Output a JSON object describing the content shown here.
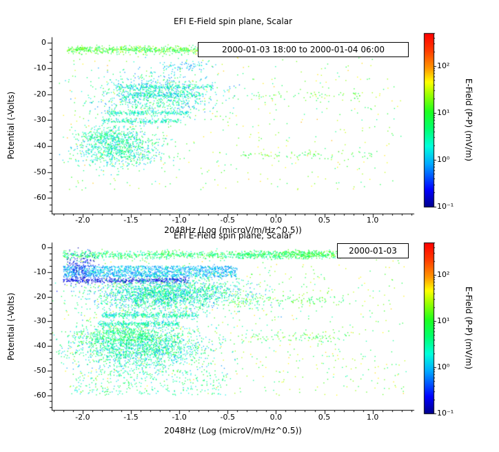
{
  "page": {
    "background": "#ffffff"
  },
  "chart_data": [
    {
      "type": "scatter",
      "title": "EFI  E-Field spin plane, Scalar",
      "xlabel": "2048Hz (Log (microV/m/Hz^0.5))",
      "ylabel": "Potential (-Volts)",
      "legend": "2000-01-03 18:00 to 2000-01-04 06:00",
      "xlim": [
        -2.32,
        1.43
      ],
      "ylim": [
        -66,
        2
      ],
      "xticks": [
        -2.0,
        -1.5,
        -1.0,
        -0.5,
        0.0,
        0.5,
        1.0
      ],
      "xtick_labels": [
        "-2.0",
        "-1.5",
        "-1.0",
        "-0.5",
        "0.0",
        "0.5",
        "1.0"
      ],
      "yticks": [
        0,
        -10,
        -20,
        -30,
        -40,
        -50,
        -60
      ],
      "ytick_labels": [
        "0",
        "-10",
        "-20",
        "-30",
        "-40",
        "-50",
        "-60"
      ],
      "grid": false,
      "legend_position": "top-right-inside",
      "colorbar": {
        "label": "E-Field (P-P) (mV/m)",
        "scale": "log",
        "range_log10": [
          -1,
          2.7
        ],
        "tick_values_log10": [
          2,
          1,
          0,
          -1
        ],
        "tick_labels": [
          "10²",
          "10¹",
          "10⁰",
          "10⁻¹"
        ],
        "colormap": "rainbow-blue-to-red"
      },
      "clusters": [
        {
          "shape": "hline",
          "x": [
            -2.18,
            -0.35
          ],
          "cy": -2.8,
          "sy": 0.6,
          "n": 550,
          "v": [
            0.5,
            1.5
          ]
        },
        {
          "shape": "band",
          "x": [
            -2.18,
            -0.3
          ],
          "y": [
            -1.2,
            -5.0
          ],
          "n": 200,
          "v": [
            0.5,
            1.6
          ]
        },
        {
          "shape": "hline",
          "x": [
            -0.6,
            0.35
          ],
          "cy": -2.8,
          "sy": 0.5,
          "n": 180,
          "v": [
            -0.2,
            0.6
          ]
        },
        {
          "shape": "gauss",
          "cx": -0.95,
          "cy": -9.0,
          "sx": 0.12,
          "sy": 1.0,
          "n": 70,
          "v": [
            -0.3,
            0.4
          ]
        },
        {
          "shape": "gauss",
          "cx": -1.25,
          "cy": -20.5,
          "sx": 0.33,
          "sy": 4.5,
          "n": 850,
          "v": [
            -0.3,
            1.0
          ]
        },
        {
          "shape": "hline",
          "x": [
            -1.65,
            -0.65
          ],
          "cy": -17.2,
          "sy": 0.5,
          "n": 200,
          "v": [
            -0.2,
            0.8
          ]
        },
        {
          "shape": "hline",
          "x": [
            -1.6,
            -0.75
          ],
          "cy": -20.3,
          "sy": 0.5,
          "n": 180,
          "v": [
            -0.2,
            0.8
          ]
        },
        {
          "shape": "hline",
          "x": [
            -1.75,
            -0.9
          ],
          "cy": -27.2,
          "sy": 0.5,
          "n": 190,
          "v": [
            -0.1,
            0.9
          ]
        },
        {
          "shape": "hline",
          "x": [
            -1.8,
            -1.0
          ],
          "cy": -30.3,
          "sy": 0.5,
          "n": 170,
          "v": [
            -0.1,
            0.9
          ]
        },
        {
          "shape": "gauss",
          "cx": -1.63,
          "cy": -41.0,
          "sx": 0.22,
          "sy": 3.8,
          "n": 850,
          "v": [
            -0.2,
            1.0
          ]
        },
        {
          "shape": "gauss",
          "cx": -1.75,
          "cy": -36.0,
          "sx": 0.15,
          "sy": 1.5,
          "n": 200,
          "v": [
            0.0,
            1.0
          ]
        },
        {
          "shape": "band",
          "x": [
            -2.2,
            1.35
          ],
          "y": [
            -5,
            -57
          ],
          "n": 420,
          "v": [
            0.5,
            1.9
          ]
        },
        {
          "shape": "hline",
          "x": [
            -0.4,
            1.0
          ],
          "cy": -43.5,
          "sy": 0.8,
          "n": 80,
          "v": [
            0.6,
            1.5
          ]
        },
        {
          "shape": "hline",
          "x": [
            -0.3,
            0.9
          ],
          "cy": -20.5,
          "sy": 0.8,
          "n": 60,
          "v": [
            0.6,
            1.5
          ]
        }
      ]
    },
    {
      "type": "scatter",
      "title": "EFI  E-Field spin plane, Scalar",
      "xlabel": "2048Hz (Log (microV/m/Hz^0.5))",
      "ylabel": "Potential (-Volts)",
      "legend": "2000-01-03",
      "xlim": [
        -2.32,
        1.43
      ],
      "ylim": [
        -66,
        2
      ],
      "xticks": [
        -2.0,
        -1.5,
        -1.0,
        -0.5,
        0.0,
        0.5,
        1.0
      ],
      "xtick_labels": [
        "-2.0",
        "-1.5",
        "-1.0",
        "-0.5",
        "0.0",
        "0.5",
        "1.0"
      ],
      "yticks": [
        0,
        -10,
        -20,
        -30,
        -40,
        -50,
        -60
      ],
      "ytick_labels": [
        "0",
        "-10",
        "-20",
        "-30",
        "-40",
        "-50",
        "-60"
      ],
      "grid": false,
      "legend_position": "top-right-inside",
      "colorbar": {
        "label": "E-Field (P-P) (mV/m)",
        "scale": "log",
        "range_log10": [
          -1,
          2.7
        ],
        "tick_values_log10": [
          2,
          1,
          0,
          -1
        ],
        "tick_labels": [
          "10²",
          "10¹",
          "10⁰",
          "10⁻¹"
        ],
        "colormap": "rainbow-blue-to-red"
      },
      "clusters": [
        {
          "shape": "hline",
          "x": [
            -2.2,
            0.1
          ],
          "cy": -3.0,
          "sy": 0.8,
          "n": 800,
          "v": [
            0.2,
            1.3
          ]
        },
        {
          "shape": "gauss",
          "cx": 0.35,
          "cy": -2.8,
          "sx": 0.18,
          "sy": 0.9,
          "n": 260,
          "v": [
            0.5,
            1.4
          ]
        },
        {
          "shape": "band",
          "x": [
            -0.4,
            0.62
          ],
          "y": [
            -1.5,
            -4.5
          ],
          "n": 160,
          "v": [
            0.3,
            1.2
          ]
        },
        {
          "shape": "band",
          "x": [
            -2.2,
            -0.4
          ],
          "y": [
            -7.5,
            -12
          ],
          "n": 1300,
          "v": [
            -0.35,
            0.35
          ]
        },
        {
          "shape": "hline",
          "x": [
            -2.2,
            -0.9
          ],
          "cy": -13.4,
          "sy": 0.6,
          "n": 420,
          "v": [
            -0.95,
            -0.45
          ]
        },
        {
          "shape": "gauss",
          "cx": -2.02,
          "cy": -9.0,
          "sx": 0.09,
          "sy": 3.0,
          "n": 200,
          "v": [
            -0.9,
            -0.3
          ]
        },
        {
          "shape": "gauss",
          "cx": -1.15,
          "cy": -19.0,
          "sx": 0.4,
          "sy": 3.4,
          "n": 2000,
          "v": [
            -0.3,
            1.0
          ]
        },
        {
          "shape": "hline",
          "x": [
            -1.8,
            -0.8
          ],
          "cy": -27.5,
          "sy": 0.6,
          "n": 330,
          "v": [
            -0.1,
            0.9
          ]
        },
        {
          "shape": "hline",
          "x": [
            -1.85,
            -1.0
          ],
          "cy": -31.0,
          "sy": 0.6,
          "n": 280,
          "v": [
            -0.1,
            0.9
          ]
        },
        {
          "shape": "gauss",
          "cx": -1.4,
          "cy": -41.0,
          "sx": 0.35,
          "sy": 4.5,
          "n": 1700,
          "v": [
            -0.2,
            1.0
          ]
        },
        {
          "shape": "gauss",
          "cx": -1.55,
          "cy": -36.0,
          "sx": 0.25,
          "sy": 2.0,
          "n": 450,
          "v": [
            0.3,
            1.2
          ]
        },
        {
          "shape": "band",
          "x": [
            -2.2,
            1.35
          ],
          "y": [
            -5,
            -60
          ],
          "n": 700,
          "v": [
            0.4,
            1.8
          ]
        },
        {
          "shape": "band",
          "x": [
            -2.1,
            -0.5
          ],
          "y": [
            -50,
            -60
          ],
          "n": 280,
          "v": [
            0.0,
            1.0
          ]
        },
        {
          "shape": "hline",
          "x": [
            -0.5,
            0.7
          ],
          "cy": -21.5,
          "sy": 1.0,
          "n": 110,
          "v": [
            0.5,
            1.4
          ]
        },
        {
          "shape": "hline",
          "x": [
            -0.4,
            0.8
          ],
          "cy": -36.5,
          "sy": 1.0,
          "n": 90,
          "v": [
            0.5,
            1.4
          ]
        }
      ]
    }
  ]
}
